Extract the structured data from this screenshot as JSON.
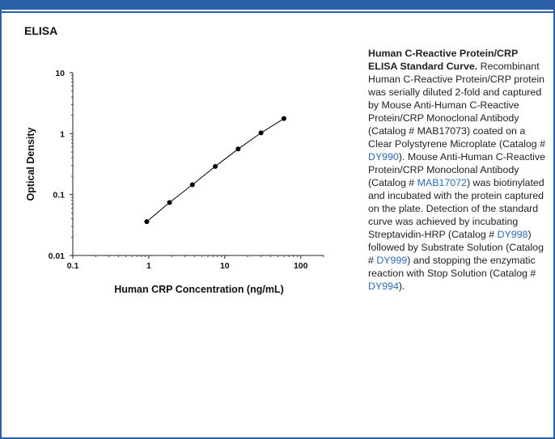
{
  "section": {
    "title": "ELISA"
  },
  "colors": {
    "frame": "#2b5fa8",
    "link": "#2b6cb8",
    "series": "#000000"
  },
  "chart_data": {
    "type": "scatter",
    "xlabel": "Human CRP Concentration (ng/mL)",
    "ylabel": "Optical Density",
    "x_scale": "log",
    "y_scale": "log",
    "xlim": [
      0.1,
      200
    ],
    "ylim": [
      0.01,
      10
    ],
    "x_ticks": [
      {
        "value": 0.1,
        "label": "0.1"
      },
      {
        "value": 1,
        "label": "1"
      },
      {
        "value": 10,
        "label": "10"
      },
      {
        "value": 100,
        "label": "100"
      }
    ],
    "y_ticks": [
      {
        "value": 0.01,
        "label": "0.01"
      },
      {
        "value": 0.1,
        "label": "0.1"
      },
      {
        "value": 1,
        "label": "1"
      },
      {
        "value": 10,
        "label": "10"
      }
    ],
    "grid": false,
    "series": [
      {
        "x": [
          0.94,
          1.875,
          3.75,
          7.5,
          15,
          30,
          60
        ],
        "y": [
          0.036,
          0.074,
          0.145,
          0.29,
          0.56,
          1.03,
          1.77
        ]
      }
    ]
  },
  "caption": {
    "title": "Human C-Reactive Protein/CRP ELISA Standard Curve.",
    "segments": [
      {
        "text": " Recombinant Human C-Reactive Protein/CRP protein was serially diluted 2-fold and captured by Mouse Anti-Human C-Reactive Protein/CRP Monoclonal Antibody (Catalog # MAB17073) coated on a Clear Polystyrene Microplate (Catalog # "
      },
      {
        "text": "DY990",
        "link": true
      },
      {
        "text": "). Mouse Anti-Human C-Reactive Protein/CRP Monoclonal Antibody (Catalog # "
      },
      {
        "text": "MAB17072",
        "link": true
      },
      {
        "text": ") was biotinylated and incubated with the protein captured on the plate. Detection of the standard curve was achieved by incubating Streptavidin-HRP (Catalog # "
      },
      {
        "text": "DY998",
        "link": true
      },
      {
        "text": ") followed by Substrate Solution (Catalog # "
      },
      {
        "text": "DY999",
        "link": true
      },
      {
        "text": ") and stopping the enzymatic reaction with Stop Solution (Catalog # "
      },
      {
        "text": "DY994",
        "link": true
      },
      {
        "text": ")."
      }
    ]
  }
}
